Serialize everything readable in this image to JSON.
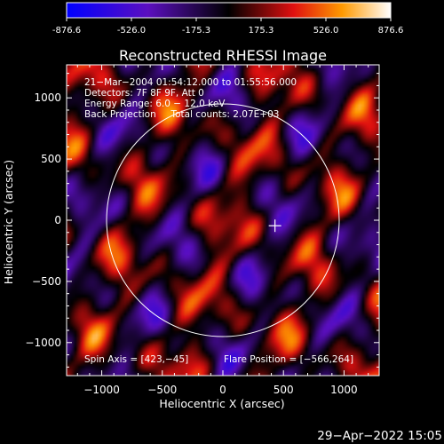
{
  "colorbar": {
    "ticks": [
      "-876.6",
      "-526.0",
      "-175.3",
      "175.3",
      "526.0",
      "876.6"
    ],
    "min": -876.6,
    "max": 876.6
  },
  "chart_data": {
    "type": "heatmap",
    "title": "Reconstructed RHESSI Image",
    "xlabel": "Heliocentric X (arcsec)",
    "ylabel": "Heliocentric Y (arcsec)",
    "xlim": [
      -1290,
      1290
    ],
    "ylim": [
      -1270,
      1270
    ],
    "xticks": [
      -1000,
      -500,
      0,
      500,
      1000
    ],
    "xtick_labels": [
      "−1000",
      "−500",
      "0",
      "500",
      "1000"
    ],
    "yticks": [
      1000,
      500,
      0,
      -500,
      -1000
    ],
    "ytick_labels": [
      "1000",
      "500",
      "0",
      "−500",
      "−1000"
    ],
    "solar_limb_radius_arcsec": 960,
    "flare_marker": [
      430,
      -45
    ],
    "annotations": [
      "21−Mar−2004 01:54:12.000 to 01:55:56.000",
      "Detectors: 7F 8F 9F, Att 0",
      "Energy Range: 6.0 − 12.0 keV",
      "Back Projection     Total counts: 2.07E+03",
      "Spin Axis = [423,−45]",
      "Flare Position = [−566,264]"
    ],
    "colormap": "blue-purple-black-red-yellow-white"
  },
  "footer": {
    "date": "29−Apr−2022 15:05"
  }
}
